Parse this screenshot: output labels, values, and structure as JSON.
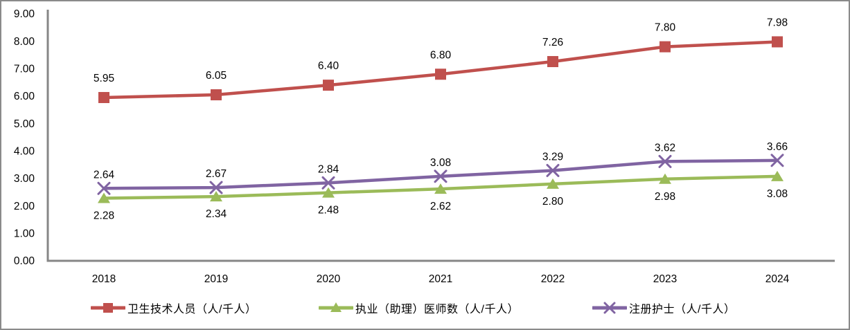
{
  "chart_data": {
    "type": "line",
    "title": "",
    "xlabel": "",
    "ylabel": "",
    "categories": [
      "2018",
      "2019",
      "2020",
      "2021",
      "2022",
      "2023",
      "2024"
    ],
    "series": [
      {
        "name": "卫生技术人员（人/千人）",
        "values": [
          5.95,
          6.05,
          6.4,
          6.8,
          7.26,
          7.8,
          7.98
        ],
        "color": "#C0504D",
        "marker": "square",
        "label_position": "above"
      },
      {
        "name": "执业（助理）医师数（人/千人）",
        "values": [
          2.28,
          2.34,
          2.48,
          2.62,
          2.8,
          2.98,
          3.08
        ],
        "color": "#9BBB59",
        "marker": "triangle",
        "label_position": "below"
      },
      {
        "name": "注册护士（人/千人）",
        "values": [
          2.64,
          2.67,
          2.84,
          3.08,
          3.29,
          3.62,
          3.66
        ],
        "color": "#8064A2",
        "marker": "x",
        "label_position": "above"
      }
    ],
    "ylim": [
      0,
      9
    ],
    "ytick_interval": 1,
    "ytick_labels": [
      "0.00",
      "1.00",
      "2.00",
      "3.00",
      "4.00",
      "5.00",
      "6.00",
      "7.00",
      "8.00",
      "9.00"
    ],
    "value_label_decimals": 2,
    "grid": false,
    "legend_position": "bottom",
    "axis_color": "#868686",
    "text_color": "#000000",
    "frame_border_color": "#8A8A8A",
    "background_color": "#FFFFFF"
  }
}
